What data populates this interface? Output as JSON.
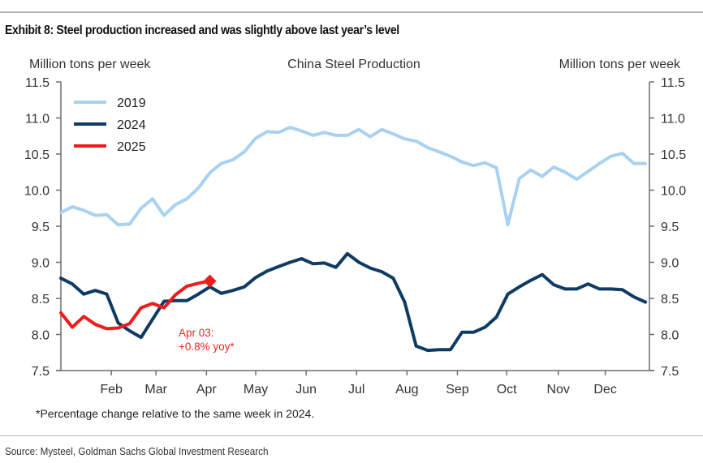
{
  "header": {
    "exhibit_title": "Exhibit 8: Steel production increased and was slightly above last year’s level"
  },
  "footnote": "*Percentage change relative to the same week in 2024.",
  "source": "Source: Mysteel, Goldman Sachs Global Investment Research",
  "chart_data": {
    "type": "line",
    "title": "China Steel Production",
    "ylabel_left": "Million tons per week",
    "ylabel_right": "Million tons per week",
    "xlabel": "",
    "ylim": [
      7.5,
      11.5
    ],
    "yticks": [
      "7.5",
      "8.0",
      "8.5",
      "9.0",
      "9.5",
      "10.0",
      "10.5",
      "11.0",
      "11.5"
    ],
    "ytick_values": [
      7.5,
      8.0,
      8.5,
      9.0,
      9.5,
      10.0,
      10.5,
      11.0,
      11.5
    ],
    "x_unit": "week of year",
    "xlim": [
      1,
      52
    ],
    "xtick_labels": [
      "Feb",
      "Mar",
      "Apr",
      "May",
      "Jun",
      "Jul",
      "Aug",
      "Sep",
      "Oct",
      "Nov",
      "Dec"
    ],
    "xtick_weeks": [
      5.4,
      9.3,
      13.7,
      18.0,
      22.4,
      26.8,
      31.2,
      35.6,
      39.9,
      44.4,
      48.5
    ],
    "legend_position": "top-left",
    "grid": false,
    "series": [
      {
        "name": "2019",
        "color": "#a9d1f0",
        "values": [
          9.69,
          9.77,
          9.72,
          9.65,
          9.66,
          9.52,
          9.53,
          9.75,
          9.88,
          9.65,
          9.8,
          9.88,
          10.03,
          10.24,
          10.37,
          10.42,
          10.53,
          10.72,
          10.81,
          10.8,
          10.87,
          10.82,
          10.76,
          10.8,
          10.76,
          10.76,
          10.84,
          10.74,
          10.84,
          10.78,
          10.71,
          10.68,
          10.59,
          10.53,
          10.47,
          10.39,
          10.34,
          10.38,
          10.31,
          9.52,
          10.16,
          10.28,
          10.19,
          10.32,
          10.25,
          10.15,
          10.26,
          10.37,
          10.47,
          10.51,
          10.37,
          10.37
        ]
      },
      {
        "name": "2024",
        "color": "#0f3b63",
        "values": [
          8.78,
          8.7,
          8.56,
          8.61,
          8.56,
          8.16,
          8.05,
          7.96,
          8.21,
          8.46,
          8.47,
          8.47,
          8.56,
          8.66,
          8.57,
          8.61,
          8.66,
          8.79,
          8.88,
          8.94,
          9.0,
          9.05,
          8.98,
          8.99,
          8.93,
          9.12,
          9.0,
          8.92,
          8.87,
          8.78,
          8.45,
          7.84,
          7.78,
          7.79,
          7.79,
          8.03,
          8.03,
          8.1,
          8.24,
          8.56,
          8.66,
          8.75,
          8.83,
          8.69,
          8.63,
          8.63,
          8.7,
          8.63,
          8.63,
          8.62,
          8.52,
          8.45
        ]
      },
      {
        "name": "2025",
        "color": "#ee1c1c",
        "values": [
          8.3,
          8.1,
          8.25,
          8.14,
          8.08,
          8.09,
          8.15,
          8.37,
          8.43,
          8.37,
          8.55,
          8.67,
          8.71,
          8.74
        ]
      }
    ],
    "annotations": [
      {
        "series": "2025",
        "marker": "diamond",
        "at_week": 14,
        "value": 8.74,
        "text_lines": [
          "Apr 03:",
          "+0.8% yoy*"
        ]
      }
    ]
  }
}
